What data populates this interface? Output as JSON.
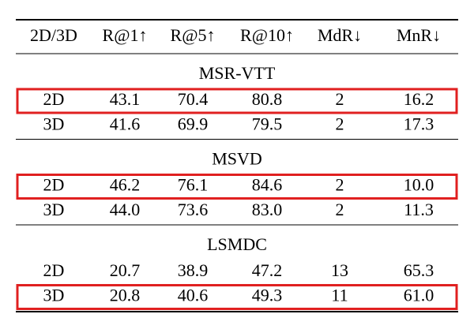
{
  "table": {
    "header": [
      "2D/3D",
      "R@1↑",
      "R@5↑",
      "R@10↑",
      "MdR↓",
      "MnR↓"
    ],
    "sections": [
      {
        "title": "MSR-VTT",
        "rows": [
          {
            "cells": [
              "2D",
              "43.1",
              "70.4",
              "80.8",
              "2",
              "16.2"
            ],
            "highlighted": true
          },
          {
            "cells": [
              "3D",
              "41.6",
              "69.9",
              "79.5",
              "2",
              "17.3"
            ],
            "highlighted": false
          }
        ]
      },
      {
        "title": "MSVD",
        "rows": [
          {
            "cells": [
              "2D",
              "46.2",
              "76.1",
              "84.6",
              "2",
              "10.0"
            ],
            "highlighted": true
          },
          {
            "cells": [
              "3D",
              "44.0",
              "73.6",
              "83.0",
              "2",
              "11.3"
            ],
            "highlighted": false
          }
        ]
      },
      {
        "title": "LSMDC",
        "rows": [
          {
            "cells": [
              "2D",
              "20.7",
              "38.9",
              "47.2",
              "13",
              "65.3"
            ],
            "highlighted": false
          },
          {
            "cells": [
              "3D",
              "20.8",
              "40.6",
              "49.3",
              "11",
              "61.0"
            ],
            "highlighted": true
          }
        ]
      }
    ]
  }
}
